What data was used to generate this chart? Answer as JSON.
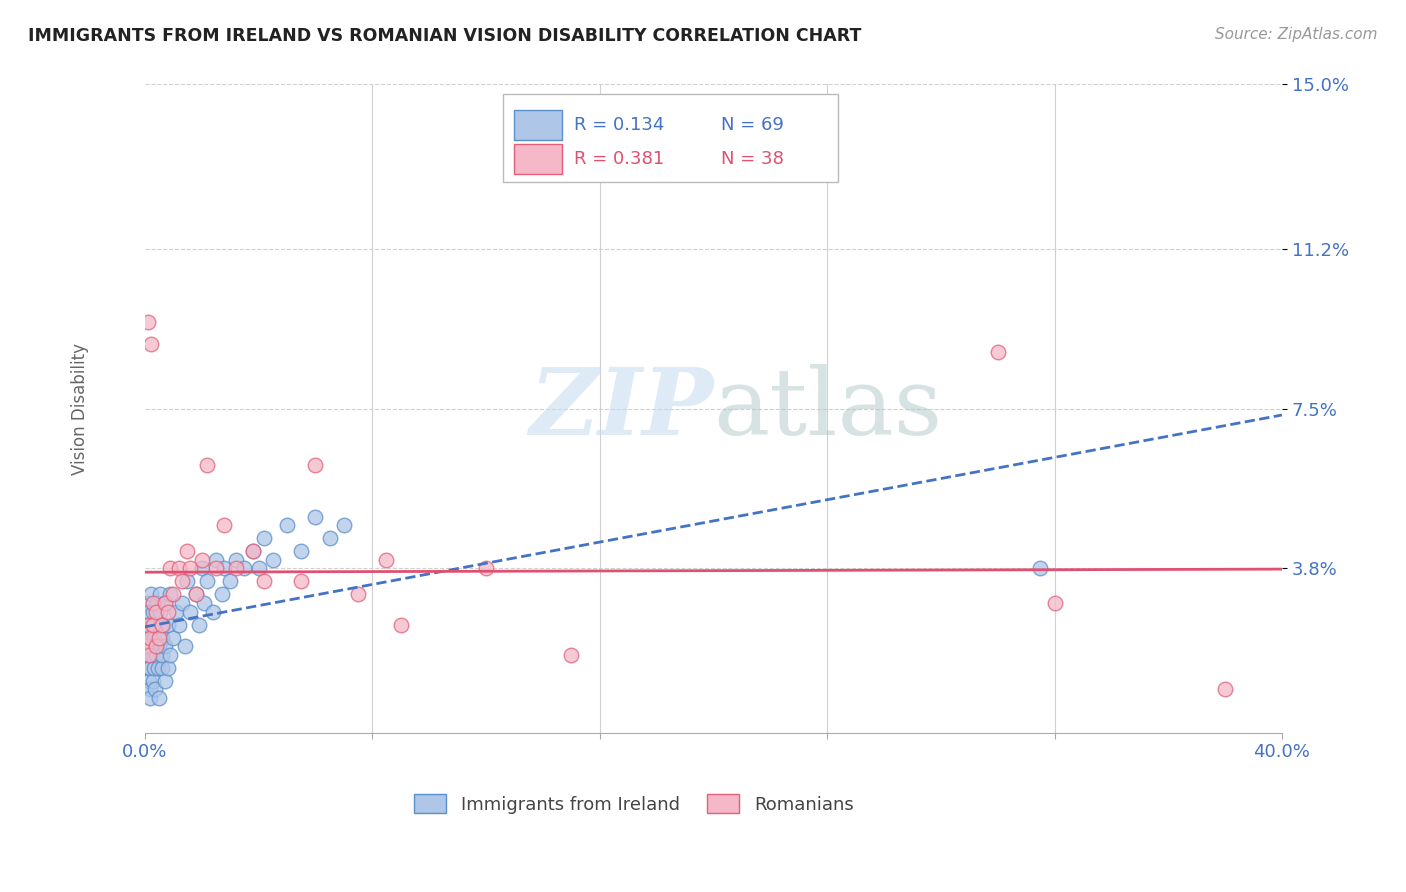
{
  "title": "IMMIGRANTS FROM IRELAND VS ROMANIAN VISION DISABILITY CORRELATION CHART",
  "source": "Source: ZipAtlas.com",
  "ylabel": "Vision Disability",
  "xlim": [
    0.0,
    0.4
  ],
  "ylim": [
    0.0,
    0.15
  ],
  "xticks": [
    0.0,
    0.08,
    0.16,
    0.24,
    0.32,
    0.4
  ],
  "xticklabels": [
    "0.0%",
    "",
    "",
    "",
    "",
    "40.0%"
  ],
  "ytick_positions": [
    0.038,
    0.075,
    0.112,
    0.15
  ],
  "ytick_labels": [
    "3.8%",
    "7.5%",
    "11.2%",
    "15.0%"
  ],
  "grid_color": "#d0d0d0",
  "background_color": "#ffffff",
  "ireland_color": "#aec6e8",
  "ireland_edge_color": "#5b8fc9",
  "romanian_color": "#f4b8c8",
  "romanian_edge_color": "#e0607a",
  "ireland_line_color": "#4472c4",
  "romanian_line_color": "#e05070",
  "ireland_R": 0.134,
  "ireland_N": 69,
  "romanian_R": 0.381,
  "romanian_N": 38,
  "ireland_x": [
    0.0005,
    0.0008,
    0.001,
    0.001,
    0.0012,
    0.0013,
    0.0014,
    0.0015,
    0.0016,
    0.0017,
    0.002,
    0.002,
    0.0022,
    0.0023,
    0.0025,
    0.0027,
    0.003,
    0.003,
    0.0032,
    0.0033,
    0.0035,
    0.0038,
    0.004,
    0.0042,
    0.0045,
    0.005,
    0.005,
    0.0052,
    0.0055,
    0.006,
    0.006,
    0.0062,
    0.0065,
    0.007,
    0.007,
    0.0072,
    0.008,
    0.008,
    0.009,
    0.009,
    0.01,
    0.011,
    0.012,
    0.013,
    0.014,
    0.015,
    0.016,
    0.018,
    0.019,
    0.02,
    0.021,
    0.022,
    0.024,
    0.025,
    0.027,
    0.028,
    0.03,
    0.032,
    0.035,
    0.038,
    0.04,
    0.042,
    0.045,
    0.05,
    0.055,
    0.06,
    0.065,
    0.07,
    0.315
  ],
  "ireland_y": [
    0.025,
    0.018,
    0.022,
    0.03,
    0.015,
    0.02,
    0.028,
    0.012,
    0.024,
    0.01,
    0.008,
    0.015,
    0.032,
    0.02,
    0.018,
    0.025,
    0.012,
    0.028,
    0.015,
    0.022,
    0.01,
    0.018,
    0.025,
    0.03,
    0.015,
    0.008,
    0.02,
    0.028,
    0.032,
    0.022,
    0.015,
    0.018,
    0.025,
    0.012,
    0.03,
    0.02,
    0.015,
    0.025,
    0.018,
    0.032,
    0.022,
    0.028,
    0.025,
    0.03,
    0.02,
    0.035,
    0.028,
    0.032,
    0.025,
    0.038,
    0.03,
    0.035,
    0.028,
    0.04,
    0.032,
    0.038,
    0.035,
    0.04,
    0.038,
    0.042,
    0.038,
    0.045,
    0.04,
    0.048,
    0.042,
    0.05,
    0.045,
    0.048,
    0.038
  ],
  "romanian_x": [
    0.0005,
    0.001,
    0.0012,
    0.0015,
    0.002,
    0.0022,
    0.003,
    0.003,
    0.004,
    0.004,
    0.005,
    0.006,
    0.007,
    0.008,
    0.009,
    0.01,
    0.012,
    0.013,
    0.015,
    0.016,
    0.018,
    0.02,
    0.022,
    0.025,
    0.028,
    0.032,
    0.038,
    0.042,
    0.055,
    0.06,
    0.075,
    0.085,
    0.09,
    0.12,
    0.15,
    0.3,
    0.32,
    0.38
  ],
  "romanian_y": [
    0.02,
    0.025,
    0.095,
    0.018,
    0.022,
    0.09,
    0.025,
    0.03,
    0.02,
    0.028,
    0.022,
    0.025,
    0.03,
    0.028,
    0.038,
    0.032,
    0.038,
    0.035,
    0.042,
    0.038,
    0.032,
    0.04,
    0.062,
    0.038,
    0.048,
    0.038,
    0.042,
    0.035,
    0.035,
    0.062,
    0.032,
    0.04,
    0.025,
    0.038,
    0.018,
    0.088,
    0.03,
    0.01
  ],
  "watermark_zip_color": "#c8ddf0",
  "watermark_atlas_color": "#b0c8c8",
  "legend_box_color": "#aaaaaa",
  "tick_label_color": "#4472c4"
}
